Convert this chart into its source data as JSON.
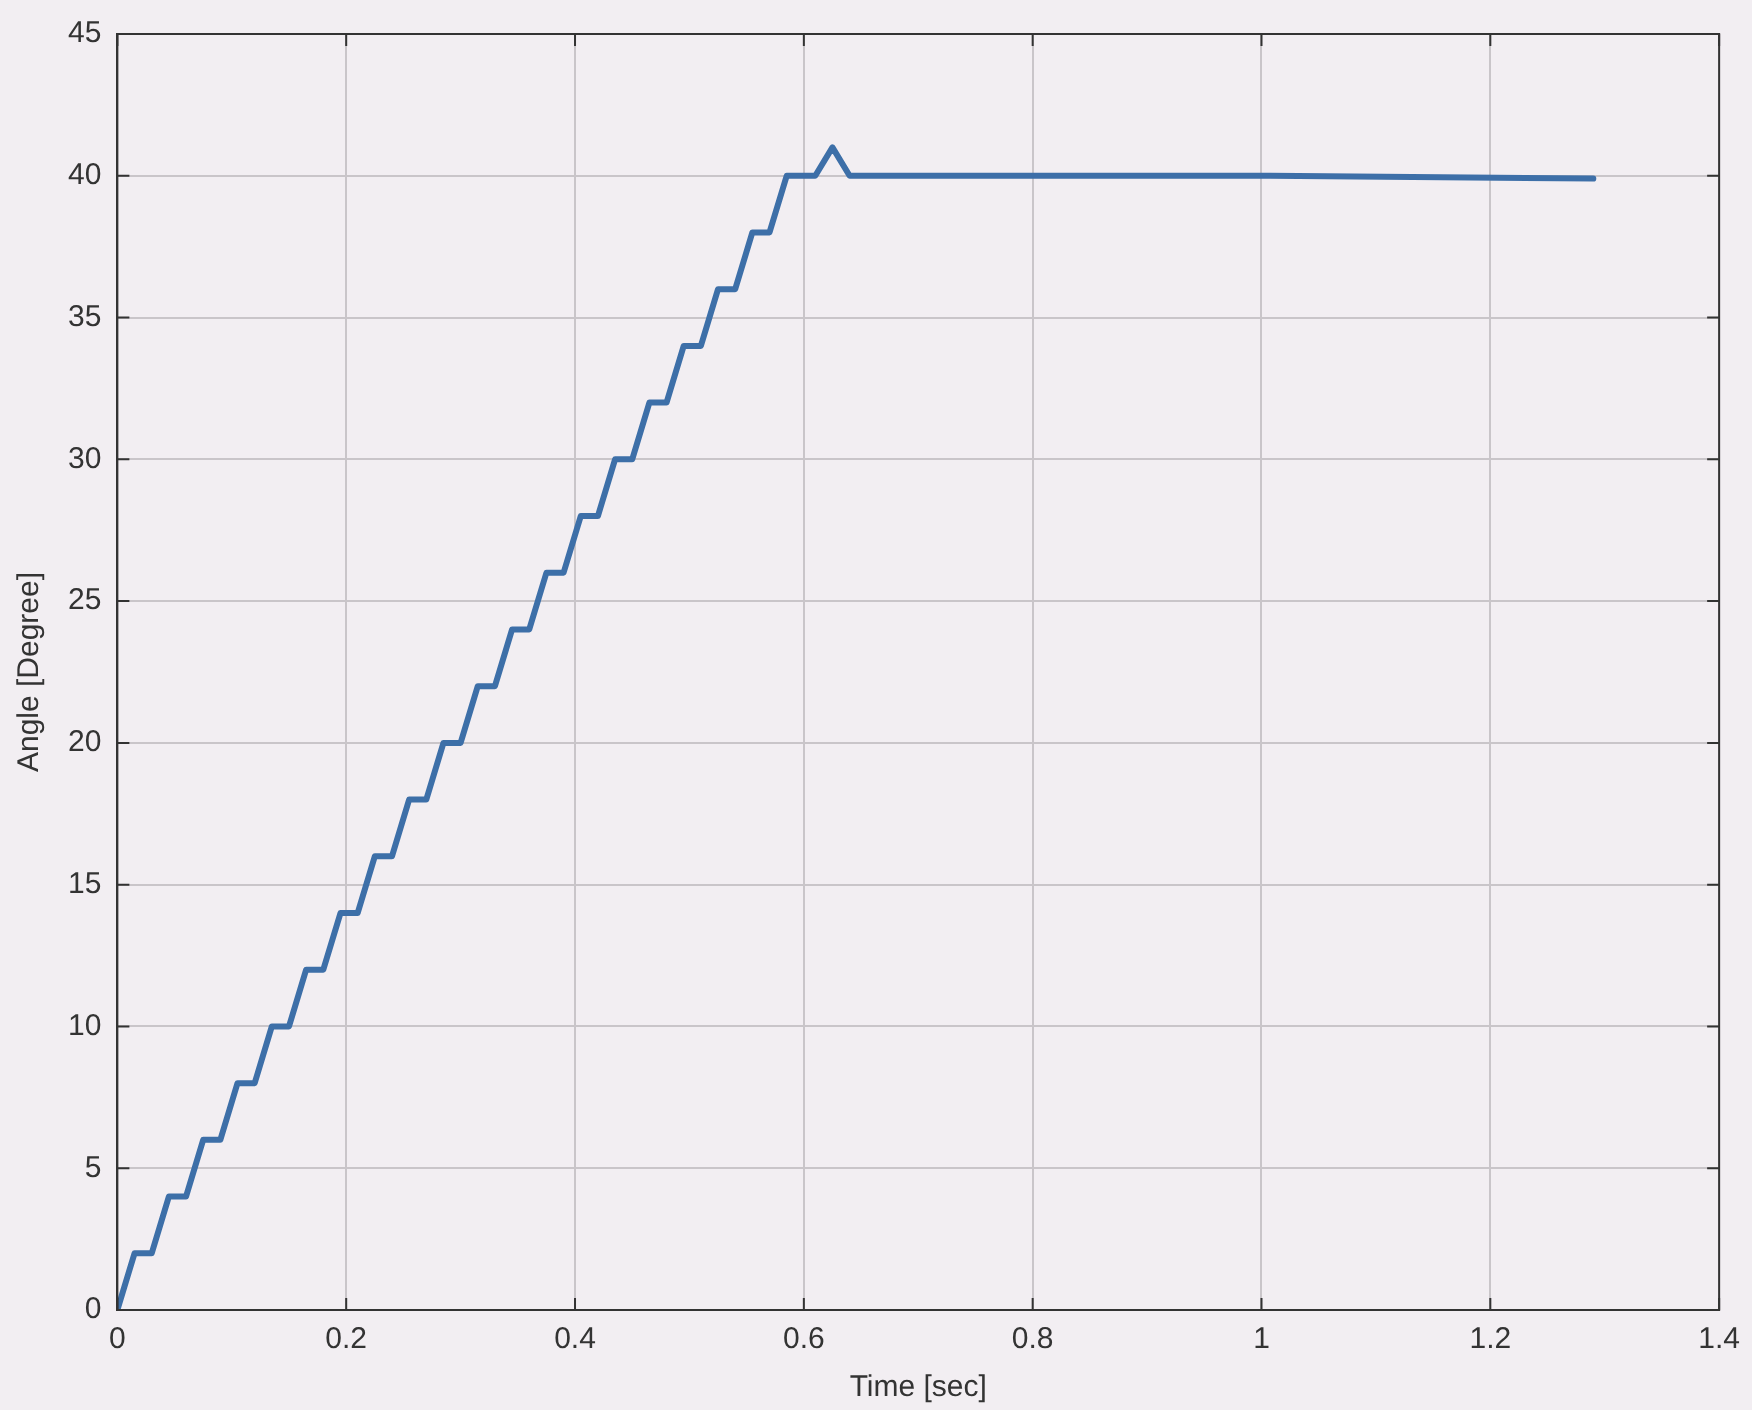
{
  "chart_data": {
    "type": "line",
    "xlabel": "Time [sec]",
    "ylabel": "Angle [Degree]",
    "xlim": [
      0,
      1.4
    ],
    "xticks": [
      0,
      0.2,
      0.4,
      0.6,
      0.8,
      1,
      1.2,
      1.4
    ],
    "ylim": [
      0,
      45
    ],
    "yticks": [
      0,
      5,
      10,
      15,
      20,
      25,
      30,
      35,
      40,
      45
    ],
    "grid": true,
    "legend": false,
    "marker": "none",
    "line_style": "solid",
    "series": [
      {
        "color": "#3d6fa8",
        "x": [
          0,
          0.015,
          0.03,
          0.045,
          0.06,
          0.075,
          0.09,
          0.105,
          0.12,
          0.135,
          0.15,
          0.165,
          0.18,
          0.195,
          0.21,
          0.225,
          0.24,
          0.255,
          0.27,
          0.285,
          0.3,
          0.315,
          0.33,
          0.345,
          0.36,
          0.375,
          0.39,
          0.405,
          0.42,
          0.435,
          0.45,
          0.465,
          0.48,
          0.495,
          0.51,
          0.525,
          0.54,
          0.555,
          0.57,
          0.585,
          0.61,
          0.625,
          0.64,
          1.0,
          1.29
        ],
        "values": [
          0,
          2,
          2,
          4,
          4,
          6,
          6,
          8,
          8,
          10,
          10,
          12,
          12,
          14,
          14,
          16,
          16,
          18,
          18,
          20,
          20,
          22,
          22,
          24,
          24,
          26,
          26,
          28,
          28,
          30,
          30,
          32,
          32,
          34,
          34,
          36,
          36,
          38,
          38,
          40,
          40,
          41,
          40,
          40,
          39.9
        ]
      }
    ]
  }
}
